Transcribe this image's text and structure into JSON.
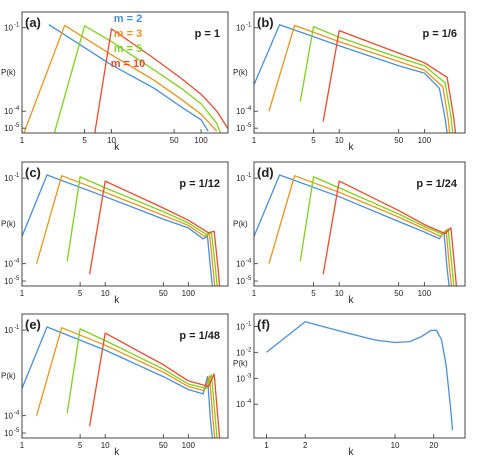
{
  "colors": {
    "m2": "#4a8fdc",
    "m3": "#e8961e",
    "m5": "#7fd11b",
    "m10": "#ee4a2e"
  },
  "legend": {
    "placement": "top-center of panel (a)",
    "entries": [
      {
        "series": "m2",
        "label": "m = 2"
      },
      {
        "series": "m3",
        "label": "m = 3"
      },
      {
        "series": "m5",
        "label": "m = 5"
      },
      {
        "series": "m10",
        "label": "m = 10"
      }
    ]
  },
  "chart_data": [
    {
      "type": "line",
      "panel_label": "(a)",
      "annotation": "p = 1",
      "xlabel": "k",
      "ylabel": "P(k)",
      "xscale": "log",
      "yscale": "log",
      "xlim": [
        1,
        200
      ],
      "ylim": [
        1e-05,
        1
      ],
      "xticks": [
        {
          "v": 1,
          "t": "1"
        },
        {
          "v": 5,
          "t": "5"
        },
        {
          "v": 10,
          "t": "10"
        },
        {
          "v": 50,
          "t": "50"
        },
        {
          "v": 100,
          "t": "100"
        }
      ],
      "yticks": [
        {
          "e": -1,
          "t": "10"
        },
        {
          "e": -4,
          "t": "10"
        },
        {
          "e": -5,
          "t": "10"
        }
      ],
      "series": [
        {
          "name": "m = 2",
          "color": "m2",
          "points": [
            [
              2,
              0.3
            ],
            [
              10,
              0.0065
            ],
            [
              30,
              0.0007
            ],
            [
              60,
              0.00012
            ],
            [
              100,
              3.5e-05
            ],
            [
              120,
              1.2e-05
            ]
          ]
        },
        {
          "name": "m = 3",
          "color": "m3",
          "points": [
            [
              1.05,
              1e-05
            ],
            [
              3,
              0.28
            ],
            [
              10,
              0.017
            ],
            [
              30,
              0.0015
            ],
            [
              60,
              0.00025
            ],
            [
              100,
              6e-05
            ],
            [
              150,
              1.2e-05
            ]
          ]
        },
        {
          "name": "m = 5",
          "color": "m5",
          "points": [
            [
              2.3,
              1e-05
            ],
            [
              5,
              0.27
            ],
            [
              10,
              0.06
            ],
            [
              30,
              0.004
            ],
            [
              60,
              0.0007
            ],
            [
              100,
              0.00016
            ],
            [
              150,
              2.5e-05
            ],
            [
              165,
              1e-05
            ]
          ]
        },
        {
          "name": "m = 10",
          "color": "m10",
          "points": [
            [
              6.5,
              1e-05
            ],
            [
              10,
              0.2
            ],
            [
              30,
              0.012
            ],
            [
              60,
              0.0018
            ],
            [
              100,
              0.0004
            ],
            [
              150,
              8e-05
            ],
            [
              200,
              1.5e-05
            ]
          ]
        }
      ]
    },
    {
      "type": "line",
      "panel_label": "(b)",
      "annotation": "p = 1/6",
      "xlabel": "k",
      "ylabel": "P(k)",
      "xscale": "log",
      "yscale": "log",
      "xlim": [
        1,
        300
      ],
      "ylim": [
        1e-05,
        1
      ],
      "xticks": [
        {
          "v": 1,
          "t": "1"
        },
        {
          "v": 5,
          "t": "5"
        },
        {
          "v": 10,
          "t": "10"
        },
        {
          "v": 50,
          "t": "50"
        },
        {
          "v": 100,
          "t": "100"
        }
      ],
      "yticks": [
        {
          "e": -1,
          "t": "10"
        },
        {
          "e": -4,
          "t": "10"
        },
        {
          "e": -5,
          "t": "10"
        }
      ],
      "series": [
        {
          "name": "m = 2",
          "color": "m2",
          "points": [
            [
              1,
              0.001
            ],
            [
              2,
              0.3
            ],
            [
              10,
              0.04
            ],
            [
              50,
              0.006
            ],
            [
              100,
              0.003
            ],
            [
              150,
              0.0007
            ],
            [
              175,
              4e-05
            ],
            [
              185,
              1e-05
            ]
          ]
        },
        {
          "name": "m = 3",
          "color": "m3",
          "points": [
            [
              1.5,
              8e-05
            ],
            [
              3,
              0.28
            ],
            [
              10,
              0.06
            ],
            [
              50,
              0.009
            ],
            [
              100,
              0.004
            ],
            [
              165,
              0.0008
            ],
            [
              190,
              4e-05
            ],
            [
              198,
              1e-05
            ]
          ]
        },
        {
          "name": "m = 5",
          "color": "m5",
          "points": [
            [
              3.5,
              0.0002
            ],
            [
              5,
              0.25
            ],
            [
              10,
              0.09
            ],
            [
              50,
              0.013
            ],
            [
              100,
              0.006
            ],
            [
              175,
              0.0012
            ],
            [
              205,
              5e-05
            ],
            [
              215,
              1e-05
            ]
          ]
        },
        {
          "name": "m = 10",
          "color": "m10",
          "points": [
            [
              6.5,
              3e-05
            ],
            [
              10,
              0.17
            ],
            [
              50,
              0.02
            ],
            [
              100,
              0.008
            ],
            [
              185,
              0.002
            ],
            [
              220,
              5e-05
            ],
            [
              232,
              1e-05
            ]
          ]
        }
      ]
    },
    {
      "type": "line",
      "panel_label": "(c)",
      "annotation": "p = 1/12",
      "xlabel": "k",
      "ylabel": "P(k)",
      "xscale": "log",
      "yscale": "log",
      "xlim": [
        1,
        300
      ],
      "ylim": [
        1e-05,
        1
      ],
      "xticks": [
        {
          "v": 1,
          "t": "1"
        },
        {
          "v": 5,
          "t": "5"
        },
        {
          "v": 10,
          "t": "10"
        },
        {
          "v": 50,
          "t": "50"
        },
        {
          "v": 100,
          "t": "100"
        }
      ],
      "yticks": [
        {
          "e": -1,
          "t": "10"
        },
        {
          "e": -4,
          "t": "10"
        },
        {
          "e": -5,
          "t": "10"
        }
      ],
      "series": [
        {
          "name": "m = 2",
          "color": "m2",
          "points": [
            [
              1,
              0.001
            ],
            [
              2,
              0.3
            ],
            [
              10,
              0.04
            ],
            [
              50,
              0.005
            ],
            [
              100,
              0.0022
            ],
            [
              150,
              0.0008
            ],
            [
              170,
              0.001
            ],
            [
              185,
              5e-05
            ],
            [
              195,
              1e-05
            ]
          ]
        },
        {
          "name": "m = 3",
          "color": "m3",
          "points": [
            [
              1.5,
              8e-05
            ],
            [
              3,
              0.28
            ],
            [
              10,
              0.06
            ],
            [
              50,
              0.007
            ],
            [
              100,
              0.0028
            ],
            [
              155,
              0.001
            ],
            [
              180,
              0.0012
            ],
            [
              198,
              5e-05
            ],
            [
              208,
              1e-05
            ]
          ]
        },
        {
          "name": "m = 5",
          "color": "m5",
          "points": [
            [
              3.5,
              0.0001
            ],
            [
              5,
              0.25
            ],
            [
              10,
              0.09
            ],
            [
              50,
              0.01
            ],
            [
              100,
              0.0035
            ],
            [
              165,
              0.0012
            ],
            [
              190,
              0.0014
            ],
            [
              212,
              5e-05
            ],
            [
              222,
              1e-05
            ]
          ]
        },
        {
          "name": "m = 10",
          "color": "m10",
          "points": [
            [
              6.5,
              3e-05
            ],
            [
              10,
              0.17
            ],
            [
              50,
              0.014
            ],
            [
              100,
              0.0045
            ],
            [
              175,
              0.0014
            ],
            [
              205,
              0.0016
            ],
            [
              228,
              5e-05
            ],
            [
              238,
              1e-05
            ]
          ]
        }
      ]
    },
    {
      "type": "line",
      "panel_label": "(d)",
      "annotation": "p = 1/24",
      "xlabel": "k",
      "ylabel": "P(k)",
      "xscale": "log",
      "yscale": "log",
      "xlim": [
        1,
        300
      ],
      "ylim": [
        1e-05,
        1
      ],
      "xticks": [
        {
          "v": 1,
          "t": "1"
        },
        {
          "v": 5,
          "t": "5"
        },
        {
          "v": 10,
          "t": "10"
        },
        {
          "v": 50,
          "t": "50"
        },
        {
          "v": 100,
          "t": "100"
        }
      ],
      "yticks": [
        {
          "e": -1,
          "t": "10"
        },
        {
          "e": -4,
          "t": "10"
        },
        {
          "e": -5,
          "t": "10"
        }
      ],
      "series": [
        {
          "name": "m = 2",
          "color": "m2",
          "points": [
            [
              1,
              0.001
            ],
            [
              2,
              0.3
            ],
            [
              10,
              0.04
            ],
            [
              50,
              0.004
            ],
            [
              100,
              0.0015
            ],
            [
              150,
              0.0008
            ],
            [
              170,
              0.0015
            ],
            [
              185,
              5e-05
            ],
            [
              195,
              1e-05
            ]
          ]
        },
        {
          "name": "m = 3",
          "color": "m3",
          "points": [
            [
              1.5,
              8e-05
            ],
            [
              3,
              0.28
            ],
            [
              10,
              0.06
            ],
            [
              50,
              0.006
            ],
            [
              100,
              0.002
            ],
            [
              155,
              0.001
            ],
            [
              180,
              0.0018
            ],
            [
              198,
              5e-05
            ],
            [
              208,
              1e-05
            ]
          ]
        },
        {
          "name": "m = 5",
          "color": "m5",
          "points": [
            [
              3.5,
              0.0001
            ],
            [
              5,
              0.25
            ],
            [
              10,
              0.09
            ],
            [
              50,
              0.008
            ],
            [
              100,
              0.0025
            ],
            [
              165,
              0.0012
            ],
            [
              190,
              0.002
            ],
            [
              212,
              5e-05
            ],
            [
              222,
              1e-05
            ]
          ]
        },
        {
          "name": "m = 10",
          "color": "m10",
          "points": [
            [
              6.5,
              3e-05
            ],
            [
              10,
              0.17
            ],
            [
              50,
              0.011
            ],
            [
              100,
              0.003
            ],
            [
              175,
              0.0013
            ],
            [
              205,
              0.0022
            ],
            [
              228,
              5e-05
            ],
            [
              238,
              1e-05
            ]
          ]
        }
      ]
    },
    {
      "type": "line",
      "panel_label": "(e)",
      "annotation": "p = 1/48",
      "xlabel": "k",
      "ylabel": "P(k)",
      "xscale": "log",
      "yscale": "log",
      "xlim": [
        1,
        300
      ],
      "ylim": [
        1e-05,
        1
      ],
      "xticks": [
        {
          "v": 1,
          "t": "1"
        },
        {
          "v": 5,
          "t": "5"
        },
        {
          "v": 10,
          "t": "10"
        },
        {
          "v": 50,
          "t": "50"
        },
        {
          "v": 100,
          "t": "100"
        }
      ],
      "yticks": [
        {
          "e": -1,
          "t": "10"
        },
        {
          "e": -4,
          "t": "10"
        },
        {
          "e": -5,
          "t": "10"
        }
      ],
      "series": [
        {
          "name": "m = 2",
          "color": "m2",
          "points": [
            [
              1,
              0.001
            ],
            [
              2,
              0.3
            ],
            [
              10,
              0.035
            ],
            [
              50,
              0.003
            ],
            [
              100,
              0.0009
            ],
            [
              150,
              0.0006
            ],
            [
              170,
              0.003
            ],
            [
              185,
              5e-05
            ],
            [
              195,
              1e-05
            ]
          ]
        },
        {
          "name": "m = 3",
          "color": "m3",
          "points": [
            [
              1.5,
              8e-05
            ],
            [
              3,
              0.28
            ],
            [
              10,
              0.055
            ],
            [
              50,
              0.0045
            ],
            [
              100,
              0.0012
            ],
            [
              155,
              0.0008
            ],
            [
              180,
              0.0032
            ],
            [
              198,
              5e-05
            ],
            [
              208,
              1e-05
            ]
          ]
        },
        {
          "name": "m = 5",
          "color": "m5",
          "points": [
            [
              3.5,
              0.0001
            ],
            [
              5,
              0.25
            ],
            [
              10,
              0.085
            ],
            [
              50,
              0.006
            ],
            [
              100,
              0.0015
            ],
            [
              165,
              0.001
            ],
            [
              190,
              0.0035
            ],
            [
              212,
              5e-05
            ],
            [
              222,
              1e-05
            ]
          ]
        },
        {
          "name": "m = 10",
          "color": "m10",
          "points": [
            [
              6.5,
              3e-05
            ],
            [
              10,
              0.17
            ],
            [
              50,
              0.009
            ],
            [
              100,
              0.002
            ],
            [
              175,
              0.0012
            ],
            [
              205,
              0.0038
            ],
            [
              228,
              5e-05
            ],
            [
              238,
              1e-05
            ]
          ]
        }
      ]
    },
    {
      "type": "line",
      "panel_label": "(f)",
      "annotation": "",
      "xlabel": "k",
      "ylabel": "P(k)",
      "xscale": "log",
      "yscale": "log",
      "xlim": [
        0.8,
        35
      ],
      "ylim": [
        5e-06,
        0.3
      ],
      "xticks": [
        {
          "v": 1,
          "t": "1"
        },
        {
          "v": 2,
          "t": "2"
        },
        {
          "v": 10,
          "t": "10"
        },
        {
          "v": 20,
          "t": "20"
        }
      ],
      "yticks": [
        {
          "e": -1,
          "t": "10"
        },
        {
          "e": -2,
          "t": "10"
        },
        {
          "e": -3,
          "t": "10"
        },
        {
          "e": -4,
          "t": "10"
        }
      ],
      "series": [
        {
          "name": "",
          "color": "m2",
          "points": [
            [
              1,
              0.01
            ],
            [
              2,
              0.15
            ],
            [
              4,
              0.06
            ],
            [
              7,
              0.03
            ],
            [
              10,
              0.024
            ],
            [
              13,
              0.026
            ],
            [
              16,
              0.04
            ],
            [
              19,
              0.07
            ],
            [
              21,
              0.07
            ],
            [
              23,
              0.03
            ],
            [
              25,
              0.003
            ],
            [
              27,
              8e-05
            ],
            [
              28,
              1e-05
            ]
          ]
        }
      ]
    }
  ]
}
